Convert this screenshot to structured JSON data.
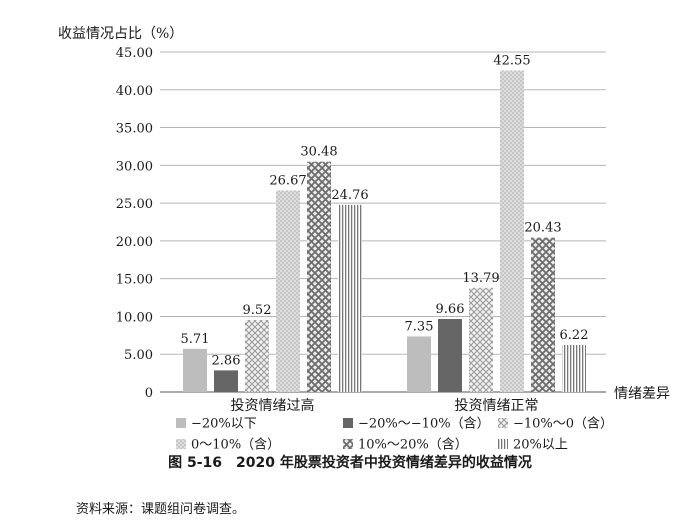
{
  "chart_data": {
    "type": "bar",
    "ylabel": "收益情况占比（%）",
    "xlabel": "情绪差异",
    "ylim": [
      0,
      45
    ],
    "yticks": [
      {
        "value": 0,
        "label": "0"
      },
      {
        "value": 5,
        "label": "5.00"
      },
      {
        "value": 10,
        "label": "10.00"
      },
      {
        "value": 15,
        "label": "15.00"
      },
      {
        "value": 20,
        "label": "20.00"
      },
      {
        "value": 25,
        "label": "25.00"
      },
      {
        "value": 30,
        "label": "30.00"
      },
      {
        "value": 35,
        "label": "35.00"
      },
      {
        "value": 40,
        "label": "40.00"
      },
      {
        "value": 45,
        "label": "45.00"
      }
    ],
    "grid": true,
    "legend_position": "bottom",
    "categories": [
      "投资情绪过高",
      "投资情绪正常"
    ],
    "series": [
      {
        "name": "−20%以下",
        "values": [
          5.71,
          7.35
        ],
        "labels": [
          "5.71",
          "7.35"
        ],
        "pattern": "solid-light",
        "color": "#bdbdbd"
      },
      {
        "name": "−20%～−10%（含）",
        "values": [
          2.86,
          9.66
        ],
        "labels": [
          "2.86",
          "9.66"
        ],
        "pattern": "solid-dark",
        "color": "#666666"
      },
      {
        "name": "−10%～0（含）",
        "values": [
          9.52,
          13.79
        ],
        "labels": [
          "9.52",
          "13.79"
        ],
        "pattern": "crosshatch-light",
        "color": "#c8c8c8"
      },
      {
        "name": "0～10%（含）",
        "values": [
          26.67,
          42.55
        ],
        "labels": [
          "26.67",
          "42.55"
        ],
        "pattern": "dots-light",
        "color": "#d0d0d0"
      },
      {
        "name": "10%～20%（含）",
        "values": [
          30.48,
          20.43
        ],
        "labels": [
          "30.48",
          "20.43"
        ],
        "pattern": "crosshatch-dark",
        "color": "#999999"
      },
      {
        "name": "20%以上",
        "values": [
          24.76,
          6.22
        ],
        "labels": [
          "24.76",
          "6.22"
        ],
        "pattern": "vlines",
        "color": "#8a8a8a"
      }
    ]
  },
  "caption": "图 5-16　2020 年股票投资者中投资情绪差异的收益情况",
  "source": "资料来源：课题组问卷调查。"
}
